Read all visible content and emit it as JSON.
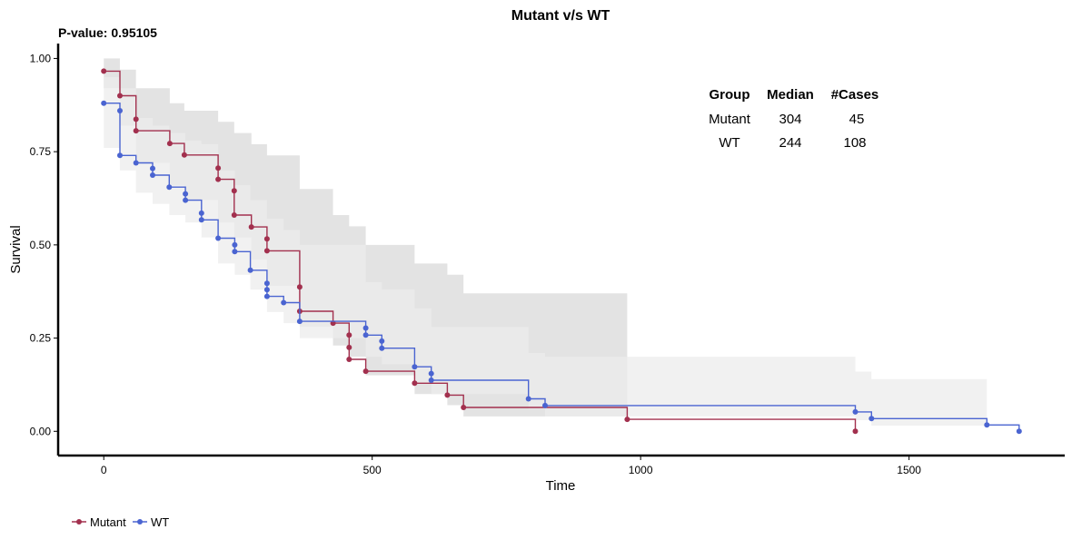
{
  "chart_data": {
    "type": "line",
    "title": "Mutant v/s WT",
    "subtitle": "P-value: 0.95105",
    "xlabel": "Time",
    "ylabel": "Survival",
    "xlim": [
      -85,
      1790
    ],
    "ylim": [
      -0.065,
      1.04
    ],
    "x_ticks": [
      0,
      500,
      1000,
      1500
    ],
    "y_ticks": [
      0.0,
      0.25,
      0.5,
      0.75,
      1.0
    ],
    "x_tick_labels": [
      "0",
      "500",
      "1000",
      "1500"
    ],
    "y_tick_labels": [
      "0.00",
      "0.25",
      "0.50",
      "0.75",
      "1.00"
    ],
    "legend_position": "bottom-left",
    "grid": false,
    "series": [
      {
        "name": "Mutant",
        "color": "#a2304e",
        "x": [
          0,
          30,
          60,
          60,
          123,
          150,
          213,
          213,
          243,
          243,
          275,
          304,
          304,
          365,
          365,
          427,
          457,
          457,
          457,
          488,
          579,
          640,
          670,
          975,
          1400
        ],
        "y": [
          0.966,
          0.9,
          0.837,
          0.806,
          0.772,
          0.741,
          0.706,
          0.676,
          0.645,
          0.58,
          0.548,
          0.516,
          0.484,
          0.387,
          0.322,
          0.29,
          0.258,
          0.225,
          0.193,
          0.161,
          0.129,
          0.097,
          0.064,
          0.032,
          0.0
        ]
      },
      {
        "name": "WT",
        "color": "#4a64d1",
        "x": [
          0,
          30,
          30,
          60,
          91,
          91,
          122,
          152,
          152,
          182,
          182,
          213,
          244,
          244,
          273,
          304,
          304,
          304,
          335,
          365,
          488,
          488,
          518,
          518,
          579,
          610,
          610,
          791,
          822,
          1400,
          1430,
          1645,
          1705
        ],
        "y": [
          0.88,
          0.86,
          0.74,
          0.72,
          0.705,
          0.687,
          0.655,
          0.637,
          0.62,
          0.585,
          0.567,
          0.518,
          0.5,
          0.482,
          0.432,
          0.397,
          0.38,
          0.362,
          0.345,
          0.295,
          0.277,
          0.258,
          0.242,
          0.223,
          0.173,
          0.155,
          0.137,
          0.087,
          0.069,
          0.052,
          0.034,
          0.017,
          0.0
        ]
      }
    ],
    "confidence_bands": [
      {
        "series": "Mutant",
        "color": "#d9d9d9",
        "x": [
          0,
          30,
          60,
          123,
          150,
          213,
          243,
          275,
          304,
          365,
          427,
          457,
          488,
          579,
          640,
          670,
          975
        ],
        "lower": [
          0.92,
          0.82,
          0.72,
          0.66,
          0.62,
          0.56,
          0.52,
          0.46,
          0.39,
          0.28,
          0.23,
          0.2,
          0.15,
          0.1,
          0.07,
          0.04,
          0.015
        ],
        "upper": [
          1.0,
          0.97,
          0.92,
          0.88,
          0.86,
          0.83,
          0.8,
          0.77,
          0.74,
          0.65,
          0.58,
          0.55,
          0.5,
          0.45,
          0.42,
          0.37,
          0.33
        ]
      },
      {
        "series": "WT",
        "color": "#ececec",
        "x": [
          0,
          30,
          60,
          91,
          122,
          152,
          182,
          213,
          244,
          273,
          304,
          335,
          365,
          488,
          518,
          579,
          610,
          791,
          822,
          1400,
          1430,
          1645
        ],
        "lower": [
          0.76,
          0.7,
          0.64,
          0.61,
          0.58,
          0.56,
          0.52,
          0.45,
          0.42,
          0.38,
          0.32,
          0.29,
          0.25,
          0.2,
          0.18,
          0.13,
          0.1,
          0.06,
          0.04,
          0.03,
          0.015,
          0.005
        ],
        "upper": [
          0.95,
          0.92,
          0.84,
          0.82,
          0.8,
          0.78,
          0.77,
          0.7,
          0.66,
          0.62,
          0.57,
          0.54,
          0.5,
          0.4,
          0.38,
          0.33,
          0.28,
          0.21,
          0.2,
          0.16,
          0.14,
          0.12
        ]
      }
    ],
    "summary_table": {
      "headers": [
        "Group",
        "Median",
        "#Cases"
      ],
      "rows": [
        [
          "Mutant",
          "304",
          "45"
        ],
        [
          "WT",
          "244",
          "108"
        ]
      ]
    }
  }
}
